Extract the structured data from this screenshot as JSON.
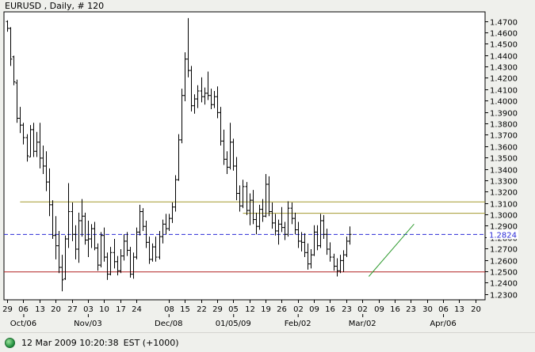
{
  "chart_data": {
    "type": "bar",
    "subtype": "ohlc",
    "title": "EURUSD , Daily, # 120",
    "ylim": [
      1.225,
      1.478
    ],
    "y_ticks": [
      1.23,
      1.24,
      1.25,
      1.26,
      1.27,
      1.28,
      1.29,
      1.3,
      1.31,
      1.32,
      1.33,
      1.34,
      1.35,
      1.36,
      1.37,
      1.38,
      1.39,
      1.4,
      1.41,
      1.42,
      1.43,
      1.44,
      1.45,
      1.46,
      1.47
    ],
    "y_tick_labels": [
      "1.2300",
      "1.2400",
      "1.2500",
      "1.2600",
      "1.2700",
      "1.2800",
      "1.2900",
      "1.3000",
      "1.3100",
      "1.3200",
      "1.3300",
      "1.3400",
      "1.3500",
      "1.3600",
      "1.3700",
      "1.3800",
      "1.3900",
      "1.4000",
      "1.4100",
      "1.4200",
      "1.4300",
      "1.4400",
      "1.4500",
      "1.4600",
      "1.4700"
    ],
    "x_ticks": [
      {
        "label": "29",
        "day": 0
      },
      {
        "label": "06",
        "day": 5
      },
      {
        "label": "13",
        "day": 10
      },
      {
        "label": "20",
        "day": 15
      },
      {
        "label": "27",
        "day": 20
      },
      {
        "label": "03",
        "day": 25
      },
      {
        "label": "10",
        "day": 30
      },
      {
        "label": "17",
        "day": 35
      },
      {
        "label": "24",
        "day": 40
      },
      {
        "label": "08",
        "day": 50
      },
      {
        "label": "15",
        "day": 55
      },
      {
        "label": "22",
        "day": 60
      },
      {
        "label": "29",
        "day": 65
      },
      {
        "label": "05",
        "day": 70
      },
      {
        "label": "12",
        "day": 75
      },
      {
        "label": "19",
        "day": 80
      },
      {
        "label": "26",
        "day": 85
      },
      {
        "label": "02",
        "day": 90
      },
      {
        "label": "09",
        "day": 95
      },
      {
        "label": "16",
        "day": 100
      },
      {
        "label": "23",
        "day": 105
      },
      {
        "label": "02",
        "day": 110
      },
      {
        "label": "09",
        "day": 115
      },
      {
        "label": "16",
        "day": 120
      },
      {
        "label": "23",
        "day": 125
      },
      {
        "label": "30",
        "day": 130
      },
      {
        "label": "06",
        "day": 135
      },
      {
        "label": "13",
        "day": 140
      },
      {
        "label": "20",
        "day": 145
      }
    ],
    "x_months": [
      {
        "label": "Oct/06",
        "day": 5
      },
      {
        "label": "Nov/03",
        "day": 25
      },
      {
        "label": "Dec/08",
        "day": 50
      },
      {
        "label": "01/05/09",
        "day": 70
      },
      {
        "label": "Feb/02",
        "day": 90
      },
      {
        "label": "Mar/02",
        "day": 110
      },
      {
        "label": "Apr/06",
        "day": 135
      }
    ],
    "x_range": [
      -1,
      148
    ],
    "last_price_label": "1.2824",
    "last_price": 1.2824,
    "lines": [
      {
        "kind": "horizontal",
        "value": 1.311,
        "from_day": 4,
        "to_day": 148,
        "color": "#a39a2e"
      },
      {
        "kind": "horizontal",
        "value": 1.301,
        "from_day": 73,
        "to_day": 148,
        "color": "#a39a2e"
      },
      {
        "kind": "horizontal",
        "value": 1.2824,
        "from_day": -1,
        "to_day": 148,
        "color": "#2b2bd6",
        "style": "dashed"
      },
      {
        "kind": "horizontal",
        "value": 1.2495,
        "from_day": -1,
        "to_day": 148,
        "color": "#b02020"
      },
      {
        "kind": "trend",
        "from": [
          112,
          1.2455
        ],
        "to": [
          126,
          1.2915
        ],
        "color": "#2e9a2e"
      }
    ],
    "ohlc": [
      [
        0,
        1.4695,
        1.4705,
        1.4605,
        1.4635
      ],
      [
        1,
        1.4635,
        1.4645,
        1.4305,
        1.4365
      ],
      [
        2,
        1.4385,
        1.4395,
        1.4135,
        1.4165
      ],
      [
        3,
        1.4155,
        1.4185,
        1.3805,
        1.3845
      ],
      [
        4,
        1.3845,
        1.3945,
        1.3715,
        1.3785
      ],
      [
        5,
        1.3785,
        1.3805,
        1.3615,
        1.3675
      ],
      [
        6,
        1.3675,
        1.3705,
        1.3465,
        1.3515
      ],
      [
        7,
        1.3505,
        1.3785,
        1.3505,
        1.3745
      ],
      [
        8,
        1.3745,
        1.3805,
        1.3505,
        1.3555
      ],
      [
        9,
        1.3555,
        1.3725,
        1.3505,
        1.3635
      ],
      [
        10,
        1.3635,
        1.3805,
        1.3405,
        1.3495
      ],
      [
        11,
        1.3495,
        1.3605,
        1.3355,
        1.3425
      ],
      [
        12,
        1.3425,
        1.3555,
        1.3205,
        1.3285
      ],
      [
        13,
        1.3285,
        1.3405,
        1.2985,
        1.3085
      ],
      [
        14,
        1.3085,
        1.3125,
        1.2785,
        1.2815
      ],
      [
        15,
        1.2815,
        1.2985,
        1.2605,
        1.2725
      ],
      [
        16,
        1.2725,
        1.2855,
        1.2485,
        1.2535
      ],
      [
        17,
        1.2535,
        1.2645,
        1.2325,
        1.2425
      ],
      [
        18,
        1.2435,
        1.2815,
        1.2425,
        1.2785
      ],
      [
        19,
        1.2785,
        1.3275,
        1.2705,
        1.3025
      ],
      [
        20,
        1.3025,
        1.3105,
        1.2765,
        1.2825
      ],
      [
        21,
        1.2825,
        1.2905,
        1.2605,
        1.2695
      ],
      [
        22,
        1.2695,
        1.3015,
        1.2575,
        1.2945
      ],
      [
        23,
        1.2945,
        1.3135,
        1.2805,
        1.2985
      ],
      [
        24,
        1.2985,
        1.3015,
        1.2735,
        1.2775
      ],
      [
        25,
        1.2775,
        1.2945,
        1.2625,
        1.2785
      ],
      [
        26,
        1.2785,
        1.2915,
        1.2705,
        1.2875
      ],
      [
        27,
        1.2875,
        1.2935,
        1.2685,
        1.2705
      ],
      [
        28,
        1.2705,
        1.2745,
        1.2505,
        1.2555
      ],
      [
        29,
        1.2555,
        1.2845,
        1.2535,
        1.2815
      ],
      [
        30,
        1.2815,
        1.2885,
        1.2585,
        1.2625
      ],
      [
        31,
        1.2625,
        1.2665,
        1.2425,
        1.2475
      ],
      [
        32,
        1.2475,
        1.2715,
        1.2465,
        1.2665
      ],
      [
        33,
        1.2665,
        1.2785,
        1.2525,
        1.2585
      ],
      [
        34,
        1.2585,
        1.2635,
        1.2465,
        1.2505
      ],
      [
        35,
        1.2505,
        1.2695,
        1.2485,
        1.2635
      ],
      [
        36,
        1.2635,
        1.2825,
        1.2595,
        1.2765
      ],
      [
        37,
        1.2765,
        1.2845,
        1.2635,
        1.2685
      ],
      [
        38,
        1.2685,
        1.2715,
        1.2445,
        1.2475
      ],
      [
        39,
        1.2475,
        1.2665,
        1.2435,
        1.2625
      ],
      [
        40,
        1.2625,
        1.2885,
        1.2605,
        1.2845
      ],
      [
        41,
        1.2845,
        1.3085,
        1.2815,
        1.3025
      ],
      [
        42,
        1.3025,
        1.3055,
        1.2855,
        1.2895
      ],
      [
        43,
        1.2895,
        1.2945,
        1.2705,
        1.2755
      ],
      [
        44,
        1.2755,
        1.2805,
        1.2565,
        1.2605
      ],
      [
        45,
        1.2605,
        1.2745,
        1.2585,
        1.2715
      ],
      [
        46,
        1.2715,
        1.2805,
        1.2585,
        1.2625
      ],
      [
        47,
        1.2625,
        1.2855,
        1.2605,
        1.2805
      ],
      [
        48,
        1.2805,
        1.2955,
        1.2745,
        1.2915
      ],
      [
        49,
        1.2915,
        1.3005,
        1.2825,
        1.2875
      ],
      [
        50,
        1.2875,
        1.3005,
        1.2855,
        1.2965
      ],
      [
        51,
        1.2965,
        1.3105,
        1.2925,
        1.3065
      ],
      [
        52,
        1.3065,
        1.3345,
        1.3025,
        1.3305
      ],
      [
        53,
        1.3305,
        1.3705,
        1.3295,
        1.3655
      ],
      [
        54,
        1.3655,
        1.4105,
        1.3625,
        1.4045
      ],
      [
        55,
        1.4045,
        1.4425,
        1.3995,
        1.4365
      ],
      [
        56,
        1.4365,
        1.4725,
        1.4205,
        1.4265
      ],
      [
        57,
        1.4265,
        1.4305,
        1.3905,
        1.3955
      ],
      [
        58,
        1.3955,
        1.4055,
        1.3885,
        1.4015
      ],
      [
        59,
        1.4015,
        1.4135,
        1.3935,
        1.4085
      ],
      [
        60,
        1.4085,
        1.4205,
        1.3985,
        1.4035
      ],
      [
        61,
        1.4035,
        1.4115,
        1.3965,
        1.4065
      ],
      [
        62,
        1.4065,
        1.4255,
        1.4005,
        1.4045
      ],
      [
        63,
        1.4045,
        1.4105,
        1.3925,
        1.3965
      ],
      [
        64,
        1.3965,
        1.4085,
        1.3935,
        1.4035
      ],
      [
        65,
        1.4035,
        1.4125,
        1.3845,
        1.3895
      ],
      [
        66,
        1.3895,
        1.3945,
        1.3605,
        1.3645
      ],
      [
        67,
        1.3645,
        1.3745,
        1.3435,
        1.3485
      ],
      [
        68,
        1.3485,
        1.3555,
        1.3355,
        1.3415
      ],
      [
        69,
        1.3415,
        1.3805,
        1.3395,
        1.3635
      ],
      [
        70,
        1.3635,
        1.3665,
        1.3385,
        1.3425
      ],
      [
        71,
        1.3425,
        1.3505,
        1.3125,
        1.3185
      ],
      [
        72,
        1.3185,
        1.3255,
        1.3025,
        1.3075
      ],
      [
        73,
        1.3075,
        1.3305,
        1.3055,
        1.3245
      ],
      [
        74,
        1.3245,
        1.3285,
        1.2995,
        1.3035
      ],
      [
        75,
        1.3035,
        1.3185,
        1.2905,
        1.3125
      ],
      [
        76,
        1.3125,
        1.3215,
        1.2915,
        1.2955
      ],
      [
        77,
        1.2955,
        1.3015,
        1.2825,
        1.2895
      ],
      [
        78,
        1.2895,
        1.3085,
        1.2865,
        1.3045
      ],
      [
        79,
        1.3045,
        1.3135,
        1.2935,
        1.2985
      ],
      [
        80,
        1.2985,
        1.3355,
        1.2975,
        1.3265
      ],
      [
        81,
        1.3265,
        1.3335,
        1.2985,
        1.3025
      ],
      [
        82,
        1.3025,
        1.3105,
        1.2875,
        1.2925
      ],
      [
        83,
        1.2925,
        1.3005,
        1.2815,
        1.2855
      ],
      [
        84,
        1.2855,
        1.2955,
        1.2735,
        1.2915
      ],
      [
        85,
        1.2915,
        1.3065,
        1.2845,
        1.2885
      ],
      [
        86,
        1.2885,
        1.2935,
        1.2775,
        1.2825
      ],
      [
        87,
        1.2825,
        1.3115,
        1.2805,
        1.3055
      ],
      [
        88,
        1.3055,
        1.3105,
        1.2915,
        1.2965
      ],
      [
        89,
        1.2965,
        1.3015,
        1.2825,
        1.2865
      ],
      [
        90,
        1.2865,
        1.2935,
        1.2705,
        1.2765
      ],
      [
        91,
        1.2765,
        1.2845,
        1.2675,
        1.2755
      ],
      [
        92,
        1.2755,
        1.2835,
        1.2625,
        1.2665
      ],
      [
        93,
        1.2665,
        1.2745,
        1.2515,
        1.2565
      ],
      [
        94,
        1.2565,
        1.2695,
        1.2525,
        1.2645
      ],
      [
        95,
        1.2645,
        1.2905,
        1.2635,
        1.2845
      ],
      [
        96,
        1.2845,
        1.2905,
        1.2685,
        1.2725
      ],
      [
        97,
        1.2725,
        1.3005,
        1.2705,
        1.2945
      ],
      [
        98,
        1.2945,
        1.2995,
        1.2785,
        1.2825
      ],
      [
        99,
        1.2825,
        1.2875,
        1.2645,
        1.2695
      ],
      [
        100,
        1.2695,
        1.2755,
        1.2585,
        1.2625
      ],
      [
        101,
        1.2625,
        1.2655,
        1.2505,
        1.2545
      ],
      [
        102,
        1.2545,
        1.2615,
        1.2455,
        1.2505
      ],
      [
        103,
        1.2505,
        1.2645,
        1.2485,
        1.2595
      ],
      [
        104,
        1.2595,
        1.2685,
        1.2495,
        1.2645
      ],
      [
        105,
        1.2645,
        1.2805,
        1.2625,
        1.2765
      ],
      [
        106,
        1.2765,
        1.2895,
        1.2735,
        1.2825
      ]
    ]
  },
  "status": {
    "datetime": "12 Mar 2009 10:20:38",
    "timezone": "EST (+1000)"
  }
}
